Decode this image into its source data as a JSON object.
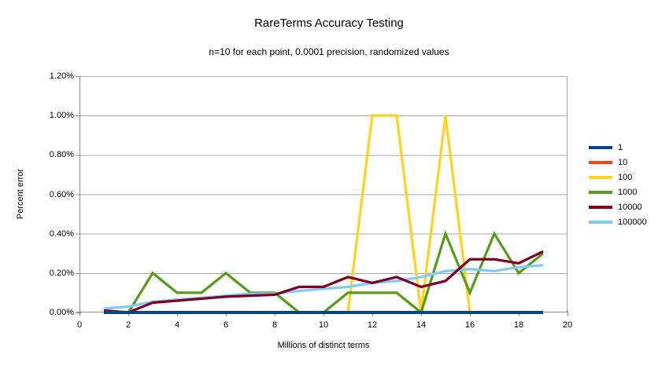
{
  "chart_data": {
    "type": "line",
    "title": "RareTerms Accuracy Testing",
    "subtitle": "n=10 for each point, 0.0001 precision, randomized values",
    "xlabel": "Millions of distinct terms",
    "ylabel": "Percent error",
    "xlim": [
      0,
      20
    ],
    "ylim": [
      0,
      1.2
    ],
    "y_unit": "percent",
    "grid": "horizontal",
    "legend_position": "right",
    "x_tick_values": [
      0,
      2,
      4,
      6,
      8,
      10,
      12,
      14,
      16,
      18,
      20
    ],
    "x_tick_labels": [
      "0",
      "2",
      "4",
      "6",
      "8",
      "10",
      "12",
      "14",
      "16",
      "18",
      "20"
    ],
    "y_tick_values": [
      0,
      0.2,
      0.4,
      0.6,
      0.8,
      1.0,
      1.2
    ],
    "y_tick_labels": [
      "0.00%",
      "0.20%",
      "0.40%",
      "0.60%",
      "0.80%",
      "1.00%",
      "1.20%"
    ],
    "x": [
      1,
      2,
      3,
      4,
      5,
      6,
      7,
      8,
      9,
      10,
      11,
      12,
      13,
      14,
      15,
      16,
      17,
      18,
      19
    ],
    "series": [
      {
        "name": "1",
        "color": "#004586",
        "values": [
          0,
          0,
          0,
          0,
          0,
          0,
          0,
          0,
          0,
          0,
          0,
          0,
          0,
          0,
          0,
          0,
          0,
          0,
          0
        ]
      },
      {
        "name": "10",
        "color": "#ff420e",
        "values": [
          0,
          0,
          0,
          0,
          0,
          0,
          0,
          0,
          0,
          0,
          0,
          0,
          0,
          0,
          0,
          0,
          0,
          0,
          0
        ]
      },
      {
        "name": "100",
        "color": "#ffd320",
        "values": [
          0,
          0,
          0,
          0,
          0,
          0,
          0,
          0,
          0,
          0,
          0,
          1.0,
          1.0,
          0,
          1.0,
          0,
          0,
          0,
          0
        ]
      },
      {
        "name": "1000",
        "color": "#579d1c",
        "values": [
          0.01,
          0,
          0.2,
          0.1,
          0.1,
          0.2,
          0.1,
          0.1,
          0,
          0,
          0.1,
          0.1,
          0.1,
          0,
          0.4,
          0.1,
          0.4,
          0.2,
          0.3
        ]
      },
      {
        "name": "10000",
        "color": "#7e0021",
        "values": [
          0.01,
          0,
          0.05,
          0.06,
          0.07,
          0.08,
          0.085,
          0.09,
          0.13,
          0.13,
          0.18,
          0.15,
          0.18,
          0.13,
          0.16,
          0.27,
          0.27,
          0.25,
          0.31
        ]
      },
      {
        "name": "100000",
        "color": "#83caff",
        "values": [
          0.02,
          0.03,
          0.055,
          0.065,
          0.075,
          0.085,
          0.095,
          0.095,
          0.11,
          0.12,
          0.13,
          0.15,
          0.16,
          0.18,
          0.21,
          0.22,
          0.21,
          0.23,
          0.24
        ]
      }
    ],
    "draw_order": [
      "10",
      "100",
      "1000",
      "100000",
      "10000",
      "1"
    ],
    "colors": {
      "gridline": "#a6a6a6",
      "plot_border": "#a6a6a6",
      "axis": "#8c8c8c",
      "background": "#ffffff",
      "text": "#000000"
    }
  }
}
